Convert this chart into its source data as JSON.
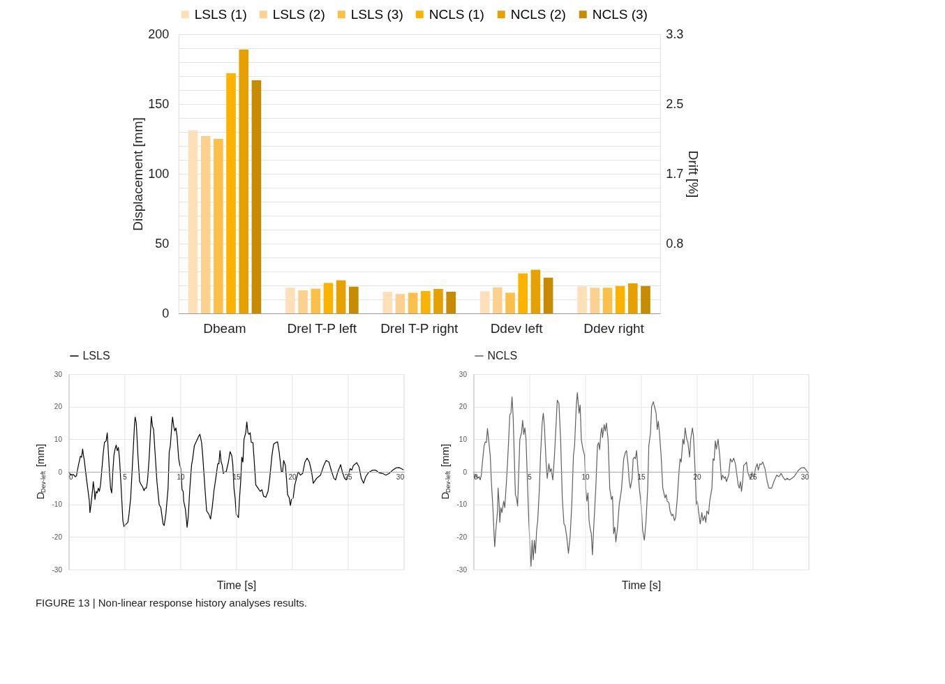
{
  "chart_data": [
    {
      "type": "bar",
      "ylabel": "Displacement [mm]",
      "y2label": "Drift [%]",
      "categories": [
        "Dbeam",
        "Drel T-P left",
        "Drel T-P right",
        "Ddev left",
        "Ddev right"
      ],
      "series": [
        {
          "name": "LSLS (1)",
          "color": "#fde0b8",
          "values": [
            131,
            18.4,
            15.5,
            15.8,
            19.4
          ]
        },
        {
          "name": "LSLS (2)",
          "color": "#fcd190",
          "values": [
            127,
            16.5,
            13.9,
            18.7,
            18.4
          ]
        },
        {
          "name": "LSLS (3)",
          "color": "#fbc04a",
          "values": [
            125,
            17.7,
            14.8,
            14.8,
            18.4
          ]
        },
        {
          "name": "NCLS (1)",
          "color": "#fbb300",
          "values": [
            172,
            21.8,
            16,
            28.7,
            19.6
          ]
        },
        {
          "name": "NCLS (2)",
          "color": "#e6a100",
          "values": [
            189,
            23.7,
            17.5,
            31.3,
            21.5
          ]
        },
        {
          "name": "NCLS (3)",
          "color": "#c68b00",
          "values": [
            167,
            19.1,
            15.5,
            25.6,
            19.6
          ]
        }
      ],
      "ylim": [
        0,
        200
      ],
      "yticks": [
        0,
        {
          "value": 10,
          "label": null
        },
        {
          "value": 20,
          "label": null
        },
        {
          "value": 30,
          "label": null
        },
        {
          "value": 40,
          "label": null
        },
        50,
        {
          "value": 60,
          "label": null
        },
        {
          "value": 70,
          "label": null
        },
        {
          "value": 80,
          "label": null
        },
        {
          "value": 90,
          "label": null
        },
        100,
        {
          "value": 110,
          "label": null
        },
        {
          "value": 120,
          "label": null
        },
        {
          "value": 130,
          "label": null
        },
        {
          "value": 140,
          "label": null
        },
        150,
        {
          "value": 160,
          "label": null
        },
        {
          "value": 170,
          "label": null
        },
        {
          "value": 180,
          "label": null
        },
        {
          "value": 190,
          "label": null
        },
        200
      ],
      "y2lim": [
        0,
        3.3
      ],
      "y2ticks": [
        {
          "value": 0.825,
          "label": "0.8"
        },
        {
          "value": 1.65,
          "label": "1.7"
        },
        {
          "value": 2.475,
          "label": "2.5"
        },
        3.3
      ],
      "grid": "y",
      "legend": "top",
      "annotations": [
        "FIGURE 13 | Non-linear response history analyses results."
      ]
    },
    {
      "type": "line",
      "xlabel": "Time [s]",
      "ylabel": "D$_{Dev-left}$ [mm]",
      "series": [
        {
          "name": "LSLS",
          "color": "#000000",
          "x": [
            0,
            0.2,
            0.4,
            0.6,
            0.7,
            0.75,
            0.9,
            1.05,
            1.15,
            1.25,
            1.3,
            1.4,
            1.55,
            1.7,
            1.85,
            1.9,
            2.0,
            2.15,
            2.2,
            2.3,
            2.35,
            2.45,
            2.55,
            2.65,
            2.75,
            2.85,
            2.95,
            3.0,
            3.1,
            3.2,
            3.35,
            3.45,
            3.55,
            3.65,
            3.75,
            3.85,
            3.95,
            4.05,
            4.15,
            4.25,
            4.35,
            4.45,
            4.55,
            4.7,
            4.85,
            4.95,
            5.15,
            5.3,
            5.4,
            5.55,
            5.75,
            5.9,
            5.95,
            6.05,
            6.2,
            6.35,
            6.5,
            6.6,
            6.75,
            6.85,
            6.95,
            7.05,
            7.2,
            7.35,
            7.4,
            7.5,
            7.6,
            7.75,
            7.9,
            8.1,
            8.25,
            8.45,
            8.55,
            8.7,
            8.9,
            9.0,
            9.1,
            9.25,
            9.3,
            9.4,
            9.5,
            9.6,
            9.7,
            9.85,
            9.95,
            10.05,
            10.15,
            10.25,
            10.3,
            10.45,
            10.55,
            10.6,
            10.7,
            10.85,
            11.0,
            11.1,
            11.25,
            11.45,
            11.65,
            11.75,
            11.9,
            12.0,
            12.2,
            12.35,
            12.55,
            12.7,
            12.85,
            13.0,
            13.15,
            13.35,
            13.45,
            13.55,
            13.65,
            13.75,
            13.85,
            13.95,
            14.1,
            14.3,
            14.45,
            14.6,
            14.7,
            14.8,
            14.9,
            15.0,
            15.1,
            15.2,
            15.3,
            15.4,
            15.5,
            15.6,
            15.7,
            15.85,
            15.95,
            16.05,
            16.15,
            16.25,
            16.35,
            16.5,
            16.6,
            16.75,
            16.95,
            17.15,
            17.3,
            17.45,
            17.65,
            17.85,
            18.0,
            18.2,
            18.35,
            18.55,
            18.7,
            18.85,
            19.05,
            19.15,
            19.25,
            19.4,
            19.5,
            19.6,
            19.75,
            19.85,
            19.95,
            20.1,
            20.25,
            20.4,
            20.55,
            20.75,
            20.95,
            21.15,
            21.35,
            21.55,
            21.75,
            21.9,
            22.2,
            22.55,
            22.85,
            23.05,
            23.3,
            23.55,
            23.75,
            23.9,
            24.1,
            24.35,
            24.5,
            24.7,
            24.85,
            25.0,
            25.2,
            25.35,
            25.5,
            25.8,
            26.0,
            26.2,
            26.4,
            26.6,
            26.85,
            27.2,
            27.5,
            27.8,
            28.1,
            28.4,
            28.7,
            29.0,
            29.3,
            29.6,
            30
          ],
          "values": [
            0,
            -1,
            -0.8,
            -1.5,
            -1.2,
            0,
            2.5,
            4.8,
            4.5,
            7,
            5.5,
            3.5,
            -1,
            -5,
            -9,
            -12.5,
            -10,
            -5,
            -3,
            -6,
            -8.5,
            -6,
            -6.5,
            -5,
            -6,
            -4,
            0,
            2,
            6,
            9,
            9.5,
            12,
            6,
            0,
            -5,
            -6.5,
            0,
            5,
            7,
            8.2,
            6.5,
            7.5,
            4,
            -5,
            -15,
            -16.8,
            -16,
            -15.5,
            -13,
            -8,
            5,
            15,
            16.8,
            15,
            5,
            -3,
            -4,
            -4.5,
            -5.8,
            -5,
            -5,
            -3,
            4,
            14,
            17,
            14,
            13,
            5,
            -3,
            -10,
            -11,
            -16,
            -16.5,
            -13,
            -5,
            6,
            8,
            15,
            16.8,
            14,
            12.5,
            13.5,
            11,
            4,
            2,
            1,
            -5.5,
            -6,
            -9,
            -11.5,
            -15,
            -17,
            -14,
            -5,
            2,
            4,
            8,
            9.5,
            11,
            11.5,
            9,
            5,
            -5,
            -12,
            -13,
            -14.5,
            -11,
            -6,
            -2.5,
            2.5,
            2.5,
            6.5,
            3,
            2,
            -0.5,
            0,
            0,
            3,
            6.2,
            5,
            2,
            -5,
            -8,
            -13,
            -13.5,
            -14,
            -8,
            -3,
            4.5,
            3,
            10,
            12,
            15.3,
            12,
            11.5,
            12,
            9,
            9,
            4,
            -4,
            -5,
            -6,
            -5.5,
            -7.5,
            -7.8,
            -6,
            -2,
            5,
            8.5,
            9,
            9.2,
            6,
            0,
            0,
            3.5,
            2,
            -2,
            -7,
            -8,
            -10.3,
            -8.5,
            -8,
            -4,
            -2,
            0,
            -1,
            -0.5,
            3,
            4.2,
            3,
            0,
            -3.5,
            -2,
            -1,
            2,
            3.5,
            3,
            0,
            -2,
            -2.5,
            0,
            2.2,
            0,
            -2,
            -2.5,
            -1.5,
            1,
            0.5,
            2,
            2.8,
            1.5,
            -2,
            -3.5,
            -1.5,
            -0.2,
            0.5,
            0.5,
            -0.3,
            -0.5,
            -1,
            -0.5,
            0.5,
            1.2,
            1.3,
            0.6
          ]
        }
      ],
      "xlim": [
        0,
        30
      ],
      "xticks": [
        0,
        5,
        10,
        15,
        20,
        25,
        30
      ],
      "ylim": [
        -30,
        30
      ],
      "yticks": [
        -30,
        -20,
        -10,
        0,
        10,
        20,
        30
      ],
      "grid": true,
      "legend": "top"
    },
    {
      "type": "line",
      "xlabel": "Time [s]",
      "ylabel": "D$_{Dev-left}$ [mm]",
      "series": [
        {
          "name": "NCLS",
          "color": "#5f5f5f",
          "x": [
            0,
            0.1,
            0.2,
            0.35,
            0.5,
            0.6,
            0.7,
            0.8,
            0.95,
            1.05,
            1.15,
            1.25,
            1.35,
            1.5,
            1.6,
            1.75,
            1.85,
            1.9,
            2.0,
            2.15,
            2.2,
            2.3,
            2.35,
            2.45,
            2.55,
            2.7,
            2.8,
            2.95,
            3.05,
            3.15,
            3.25,
            3.35,
            3.45,
            3.55,
            3.65,
            3.75,
            3.85,
            3.95,
            4.05,
            4.15,
            4.3,
            4.4,
            4.5,
            4.6,
            4.7,
            4.85,
            4.95,
            5.05,
            5.15,
            5.25,
            5.35,
            5.45,
            5.55,
            5.65,
            5.75,
            5.9,
            6.0,
            6.15,
            6.25,
            6.35,
            6.5,
            6.6,
            6.75,
            6.85,
            6.95,
            7.1,
            7.25,
            7.4,
            7.5,
            7.65,
            7.8,
            7.95,
            8.1,
            8.2,
            8.35,
            8.5,
            8.65,
            8.8,
            8.95,
            9.05,
            9.2,
            9.3,
            9.4,
            9.45,
            9.55,
            9.65,
            9.8,
            9.95,
            10.05,
            10.15,
            10.25,
            10.35,
            10.45,
            10.55,
            10.65,
            10.75,
            10.95,
            11.1,
            11.2,
            11.3,
            11.4,
            11.5,
            11.55,
            11.7,
            11.8,
            11.9,
            12.05,
            12.2,
            12.35,
            12.45,
            12.55,
            12.65,
            12.75,
            12.9,
            13.05,
            13.25,
            13.45,
            13.6,
            13.7,
            13.85,
            13.95,
            14.05,
            14.2,
            14.3,
            14.4,
            14.5,
            14.6,
            14.7,
            14.85,
            14.95,
            15.05,
            15.15,
            15.3,
            15.45,
            15.6,
            15.7,
            15.85,
            15.95,
            16.1,
            16.25,
            16.35,
            16.45,
            16.55,
            16.65,
            16.8,
            16.95,
            17.15,
            17.25,
            17.35,
            17.5,
            17.6,
            17.75,
            17.85,
            18.0,
            18.1,
            18.25,
            18.4,
            18.5,
            18.6,
            18.75,
            18.85,
            18.95,
            19.1,
            19.2,
            19.35,
            19.45,
            19.6,
            19.7,
            19.85,
            19.95,
            20.05,
            20.15,
            20.3,
            20.45,
            20.55,
            20.7,
            20.8,
            20.9,
            21.05,
            21.15,
            21.35,
            21.45,
            21.55,
            21.65,
            21.75,
            21.9,
            22.05,
            22.2,
            22.3,
            22.45,
            22.55,
            22.65,
            22.85,
            23.0,
            23.15,
            23.3,
            23.45,
            23.55,
            23.7,
            23.8,
            23.9,
            24.0,
            24.1,
            24.2,
            24.35,
            24.45,
            24.55,
            24.7,
            24.8,
            24.95,
            25.1,
            25.25,
            25.4,
            25.5,
            25.65,
            25.75,
            25.9,
            26.1,
            26.3,
            26.45,
            26.7,
            26.9,
            27.15,
            27.35,
            27.55,
            27.7,
            27.9,
            28.1,
            28.3,
            28.5,
            28.7,
            28.9,
            29.1,
            29.35,
            29.6,
            29.8,
            30
          ],
          "values": [
            0,
            -2,
            -1,
            -2,
            -1.5,
            -2.5,
            -1,
            3,
            8,
            9.2,
            9,
            13.3,
            10,
            5,
            -3,
            -12,
            -20,
            -23,
            -18,
            -12,
            -5,
            -10,
            -15.5,
            -11,
            -12.5,
            -9,
            -11,
            -3,
            3,
            10,
            17.5,
            18,
            23,
            17,
            5,
            -7,
            -8,
            -10.5,
            0,
            10,
            12,
            15.8,
            11.5,
            13.5,
            10,
            -5,
            -15,
            -22,
            -29,
            -21,
            -27,
            -21,
            -25,
            -18,
            -15,
            -5,
            5,
            15,
            18,
            14,
            3,
            -2,
            2.5,
            0,
            1,
            -2.5,
            5,
            15,
            22,
            21,
            10,
            -8,
            -16,
            -16.5,
            -20,
            -25,
            -20,
            -10,
            5,
            8,
            20,
            24.3,
            20,
            18,
            20.5,
            10,
            7,
            5,
            -5,
            -9,
            -6.5,
            -15,
            -17.5,
            -19,
            -25.5,
            -18,
            -5,
            8,
            9,
            6.8,
            12,
            13.5,
            10.5,
            14.5,
            12.5,
            15,
            10,
            -5,
            -8.5,
            -7.5,
            -19,
            -17,
            -21.5,
            -17,
            -10,
            -5.5,
            4,
            6,
            6.5,
            2,
            -3,
            -5,
            -2,
            4,
            4.5,
            4,
            6.5,
            2,
            -5,
            -8,
            -12,
            -18,
            -21,
            -15,
            -5,
            8,
            12,
            20,
            21.5,
            19.5,
            18,
            13,
            15.5,
            12,
            5,
            -5,
            -8,
            -7,
            -9,
            -9.5,
            -12,
            -13.5,
            -13,
            -15,
            -14,
            -8,
            0,
            4,
            3,
            10,
            8.5,
            13.5,
            10,
            9,
            4.5,
            10,
            13.5,
            11,
            0,
            -10,
            -9,
            -12,
            -16,
            -12.5,
            -15,
            -13.5,
            -15.5,
            -12,
            -13,
            -9,
            -5,
            4,
            3.5,
            9.5,
            7,
            10,
            5,
            -2.5,
            -1,
            -2,
            -1.5,
            -3,
            -1,
            4,
            3,
            4.2,
            2.5,
            0,
            -4,
            -5,
            -3,
            -6,
            -3,
            2,
            2.5,
            3,
            0,
            -1.5,
            -2,
            0,
            -2,
            1,
            2.5,
            0.5,
            2.5,
            2.2,
            3,
            1,
            -3,
            -5,
            -5,
            -3,
            -1,
            -1.5,
            -0.5,
            -1.5,
            -2.5,
            -2,
            -2.5,
            -2,
            -1.5,
            -0.5,
            0.5,
            1.2,
            1.3,
            0.5,
            -0.5
          ]
        }
      ],
      "xlim": [
        0,
        30
      ],
      "xticks": [
        0,
        5,
        10,
        15,
        20,
        25,
        30
      ],
      "ylim": [
        -30,
        30
      ],
      "yticks": [
        -30,
        -20,
        -10,
        0,
        10,
        20,
        30
      ],
      "grid": true,
      "legend": "top"
    }
  ]
}
